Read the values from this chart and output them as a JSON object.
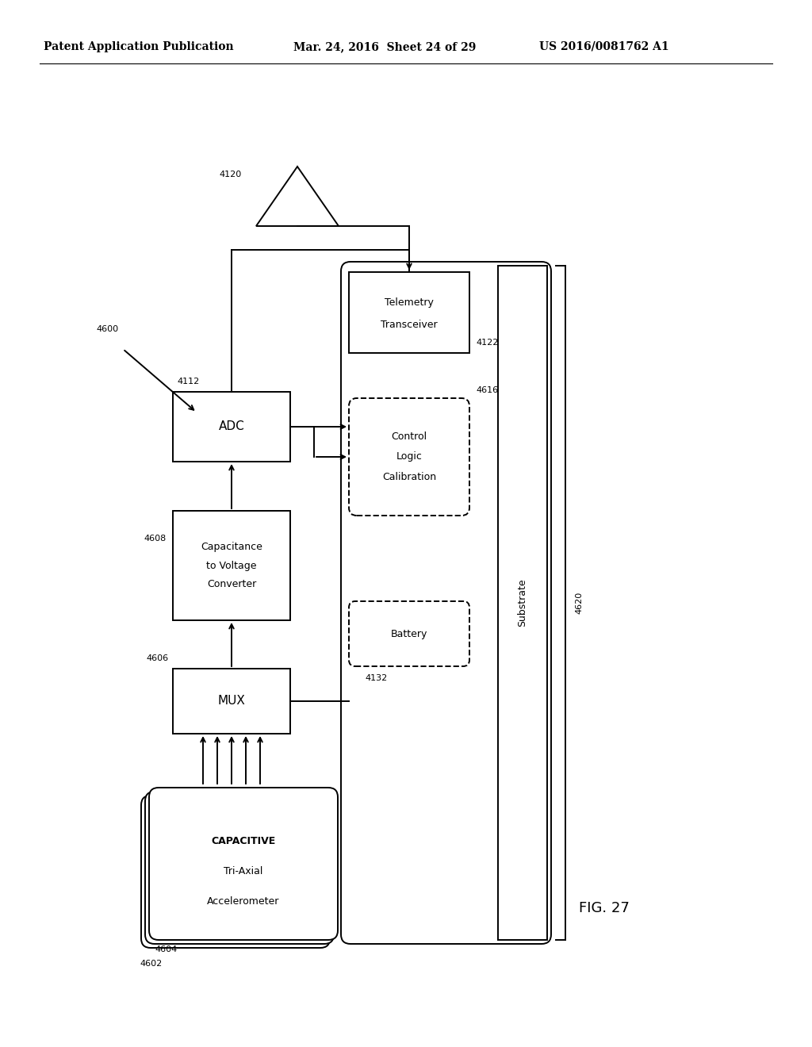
{
  "title_line1": "Patent Application Publication",
  "title_line2": "Mar. 24, 2016  Sheet 24 of 29",
  "title_line3": "US 2016/0081762 A1",
  "fig_label": "FIG. 27",
  "background_color": "#ffffff",
  "line_color": "#000000",
  "header_fontsize": 10,
  "body_fontsize": 9,
  "label_fontsize": 8,
  "lw": 1.4
}
